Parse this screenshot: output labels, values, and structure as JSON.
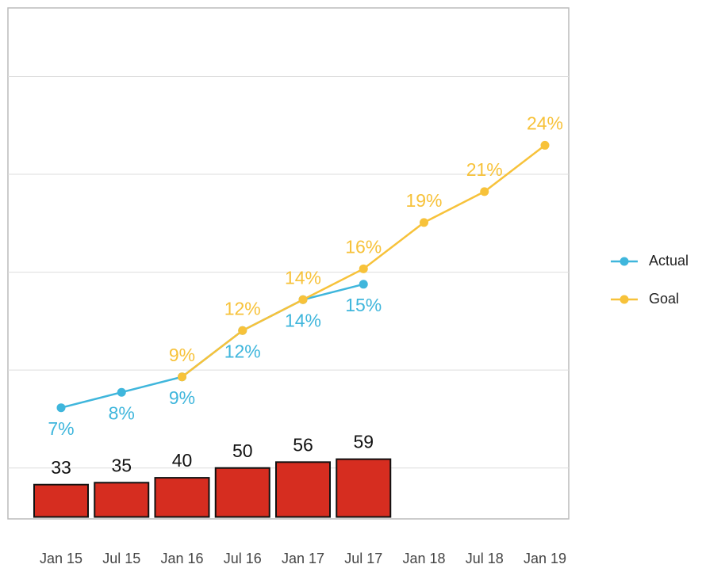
{
  "chart_data": {
    "type": "combo",
    "categories": [
      "Jan 15",
      "Jul 15",
      "Jan 16",
      "Jul 16",
      "Jan 17",
      "Jul 17",
      "Jan 18",
      "Jul 18",
      "Jan 19"
    ],
    "ylim": [
      -2,
      520
    ],
    "yticks": [
      50,
      150,
      250,
      350,
      450
    ],
    "y2lim": [
      -0.2,
      32.9
    ],
    "grid": true,
    "legend": "right",
    "series": [
      {
        "type": "bar",
        "color": "#d62d20",
        "values": [
          33,
          35,
          40,
          50,
          56,
          59,
          null,
          null,
          null
        ]
      },
      {
        "type": "line",
        "name": "Actual",
        "axis": "y2",
        "color": "#3fb6dc",
        "label_position": "below",
        "values": [
          7,
          8,
          9,
          12,
          14,
          15,
          null,
          null,
          null
        ],
        "value_labels": [
          "7%",
          "8%",
          "9%",
          "12%",
          "14%",
          "15%",
          null,
          null,
          null
        ]
      },
      {
        "type": "line",
        "name": "Goal",
        "axis": "y2",
        "color": "#f7c23a",
        "label_position": "above",
        "values": [
          null,
          null,
          9,
          12,
          14,
          16,
          19,
          21,
          24
        ],
        "value_labels": [
          null,
          null,
          "9%",
          "12%",
          "14%",
          "16%",
          "19%",
          "21%",
          "24%"
        ]
      }
    ]
  }
}
